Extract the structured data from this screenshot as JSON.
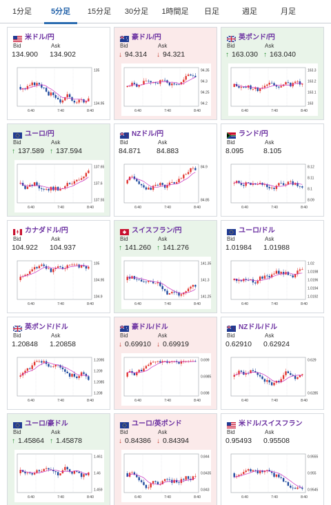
{
  "tabs": [
    {
      "label": "1分足",
      "active": false
    },
    {
      "label": "5分足",
      "active": true
    },
    {
      "label": "15分足",
      "active": false
    },
    {
      "label": "30分足",
      "active": false
    },
    {
      "label": "1時間足",
      "active": false
    },
    {
      "label": "日足",
      "active": false
    },
    {
      "label": "週足",
      "active": false
    },
    {
      "label": "月足",
      "active": false
    }
  ],
  "labels": {
    "bid": "Bid",
    "ask": "Ask"
  },
  "colors": {
    "up_candle": "#e2342d",
    "down_candle": "#1f4a9e",
    "ma_line": "#c72bc0",
    "pair_text": "#6a2fa0"
  },
  "cards": [
    {
      "pair": "米ドル/円",
      "flag": "us-flag-icon",
      "trend": "neutral",
      "arrow": "",
      "bid": "134.900",
      "ask": "134.902",
      "chart": {
        "yticks": [
          "135",
          "134.95"
        ],
        "xticks": [
          "6:40",
          "7:40",
          "8:40"
        ],
        "seed": 3,
        "drift": -0.3
      }
    },
    {
      "pair": "豪ドル/円",
      "flag": "au-flag-icon",
      "trend": "down",
      "arrow": "↓",
      "bid": "94.314",
      "ask": "94.321",
      "chart": {
        "yticks": [
          "94.35",
          "94.3",
          "94.25",
          "94.2"
        ],
        "xticks": [
          "6:40",
          "7:40",
          "8:40"
        ],
        "seed": 7,
        "drift": 0.5
      }
    },
    {
      "pair": "英ポンド/円",
      "flag": "gb-flag-icon",
      "trend": "up",
      "arrow": "↑",
      "bid": "163.030",
      "ask": "163.040",
      "chart": {
        "yticks": [
          "163.3",
          "163.2",
          "163.1",
          "163"
        ],
        "xticks": [
          "6:40",
          "7:40",
          "8:40"
        ],
        "seed": 11,
        "drift": -0.2
      }
    },
    {
      "pair": "ユーロ/円",
      "flag": "eu-flag-icon",
      "trend": "up",
      "arrow": "↑",
      "bid": "137.589",
      "ask": "137.594",
      "chart": {
        "yticks": [
          "137.65",
          "137.6",
          "137.55"
        ],
        "xticks": [
          "6:40",
          "7:40",
          "8:40"
        ],
        "seed": 13,
        "drift": 0.1
      }
    },
    {
      "pair": "NZドル/円",
      "flag": "nz-flag-icon",
      "trend": "neutral",
      "arrow": "",
      "bid": "84.871",
      "ask": "84.883",
      "chart": {
        "yticks": [
          "84.9",
          "84.85"
        ],
        "xticks": [
          "6:40",
          "7:40",
          "8:40"
        ],
        "seed": 17,
        "drift": 0.3
      }
    },
    {
      "pair": "ランド/円",
      "flag": "za-flag-icon",
      "trend": "neutral",
      "arrow": "",
      "bid": "8.095",
      "ask": "8.105",
      "chart": {
        "yticks": [
          "8.12",
          "8.11",
          "8.1",
          "8.09"
        ],
        "xticks": [
          "6:40",
          "7:40",
          "8:40"
        ],
        "seed": 19,
        "drift": -0.2
      }
    },
    {
      "pair": "カナダドル/円",
      "flag": "ca-flag-icon",
      "trend": "neutral",
      "arrow": "",
      "bid": "104.922",
      "ask": "104.937",
      "chart": {
        "yticks": [
          "105",
          "104.95",
          "104.9"
        ],
        "xticks": [
          "6:40",
          "7:40",
          "8:40"
        ],
        "seed": 23,
        "drift": 0.0
      }
    },
    {
      "pair": "スイスフラン/円",
      "flag": "ch-flag-icon",
      "trend": "up",
      "arrow": "↑",
      "bid": "141.260",
      "ask": "141.276",
      "chart": {
        "yticks": [
          "141.35",
          "141.3",
          "141.25"
        ],
        "xticks": [
          "6:40",
          "7:40",
          "8:40"
        ],
        "seed": 29,
        "drift": -0.1
      }
    },
    {
      "pair": "ユーロ/ドル",
      "flag": "eu-flag-icon",
      "trend": "neutral",
      "arrow": "",
      "bid": "1.01984",
      "ask": "1.01988",
      "chart": {
        "yticks": [
          "1.02",
          "1.0198",
          "1.0196",
          "1.0194",
          "1.0192"
        ],
        "xticks": [
          "6:40",
          "7:40",
          "8:40"
        ],
        "seed": 31,
        "drift": 0.5
      }
    },
    {
      "pair": "英ポンド/ドル",
      "flag": "gb-flag-icon",
      "trend": "neutral",
      "arrow": "",
      "bid": "1.20848",
      "ask": "1.20858",
      "chart": {
        "yticks": [
          "1.2095",
          "1.209",
          "1.2085",
          "1.208"
        ],
        "xticks": [
          "6:40",
          "7:40",
          "8:40"
        ],
        "seed": 37,
        "drift": 0.2
      }
    },
    {
      "pair": "豪ドル/ドル",
      "flag": "au-flag-icon",
      "trend": "down",
      "arrow": "↓",
      "bid": "0.69910",
      "ask": "0.69919",
      "chart": {
        "yticks": [
          "0.699",
          "0.6985",
          "0.698"
        ],
        "xticks": [
          "6:40",
          "7:40",
          "8:40"
        ],
        "seed": 41,
        "drift": 0.6
      }
    },
    {
      "pair": "NZドル/ドル",
      "flag": "nz-flag-icon",
      "trend": "neutral",
      "arrow": "",
      "bid": "0.62910",
      "ask": "0.62924",
      "chart": {
        "yticks": [
          "0.629",
          "0.6285"
        ],
        "xticks": [
          "6:40",
          "7:40",
          "8:40"
        ],
        "seed": 43,
        "drift": 0.6
      }
    },
    {
      "pair": "ユーロ/豪ドル",
      "flag": "eu-flag-icon",
      "trend": "up",
      "arrow": "↑",
      "bid": "1.45864",
      "ask": "1.45878",
      "chart": {
        "yticks": [
          "1.461",
          "1.46",
          "1.459"
        ],
        "xticks": [
          "6:40",
          "7:40",
          "8:40"
        ],
        "seed": 47,
        "drift": -0.5
      }
    },
    {
      "pair": "ユーロ/英ポンド",
      "flag": "eu-flag-icon",
      "trend": "down",
      "arrow": "↓",
      "bid": "0.84386",
      "ask": "0.84394",
      "chart": {
        "yticks": [
          "0.844",
          "0.8435",
          "0.843"
        ],
        "xticks": [
          "6:40",
          "7:40",
          "8:40"
        ],
        "seed": 53,
        "drift": 0.3
      }
    },
    {
      "pair": "米ドル/スイスフラン",
      "flag": "us-flag-icon",
      "trend": "neutral",
      "arrow": "",
      "bid": "0.95493",
      "ask": "0.95508",
      "chart": {
        "yticks": [
          "0.9555",
          "0.955",
          "0.9545"
        ],
        "xticks": [
          "6:40",
          "7:40",
          "8:40"
        ],
        "seed": 59,
        "drift": -0.3
      }
    }
  ]
}
